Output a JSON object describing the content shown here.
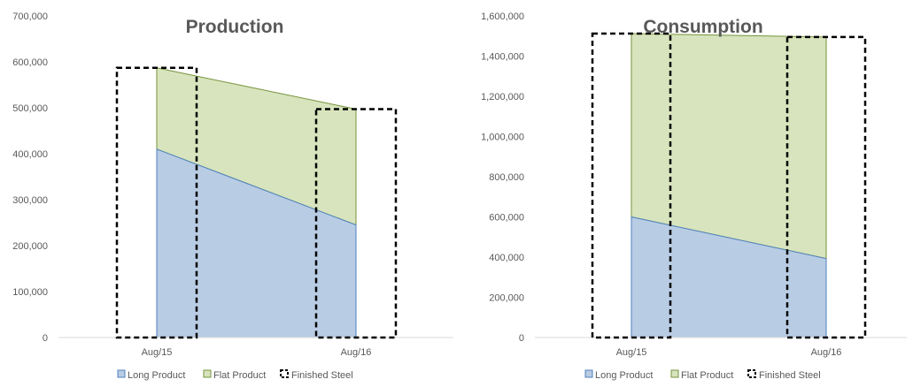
{
  "colors": {
    "long_fill": "#b8cce4",
    "long_stroke": "#4f81bd",
    "flat_fill": "#d7e4bd",
    "flat_stroke": "#77933c",
    "finished_stroke": "#000000",
    "axis": "#d9d9d9",
    "text": "#595959"
  },
  "chart_data": [
    {
      "type": "area",
      "title": "Production",
      "categories": [
        "Aug/15",
        "Aug/16"
      ],
      "xlabel": "",
      "ylabel": "",
      "ylim": [
        0,
        700000
      ],
      "yticks": [
        0,
        100000,
        200000,
        300000,
        400000,
        500000,
        600000,
        700000
      ],
      "ytick_labels": [
        "0",
        "100,000",
        "200,000",
        "300,000",
        "400,000",
        "500,000",
        "600,000",
        "700,000"
      ],
      "series": [
        {
          "name": "Long Product",
          "kind": "stacked-area",
          "values": [
            410000,
            245000
          ]
        },
        {
          "name": "Flat Product",
          "kind": "stacked-area",
          "values": [
            177000,
            252000
          ]
        },
        {
          "name": "Finished Steel",
          "kind": "dashed-bar",
          "values": [
            587000,
            497000
          ]
        }
      ],
      "grid": false,
      "legend": "bottom"
    },
    {
      "type": "area",
      "title": "Consumption",
      "categories": [
        "Aug/15",
        "Aug/16"
      ],
      "xlabel": "",
      "ylabel": "",
      "ylim": [
        0,
        1600000
      ],
      "yticks": [
        0,
        200000,
        400000,
        600000,
        800000,
        1000000,
        1200000,
        1400000,
        1600000
      ],
      "ytick_labels": [
        "0",
        "200,000",
        "400,000",
        "600,000",
        "800,000",
        "1,000,000",
        "1,200,000",
        "1,400,000",
        "1,600,000"
      ],
      "series": [
        {
          "name": "Long Product",
          "kind": "stacked-area",
          "values": [
            600000,
            393000
          ]
        },
        {
          "name": "Flat Product",
          "kind": "stacked-area",
          "values": [
            912000,
            1102000
          ]
        },
        {
          "name": "Finished Steel",
          "kind": "dashed-bar",
          "values": [
            1512000,
            1495000
          ]
        }
      ],
      "grid": false,
      "legend": "bottom"
    }
  ]
}
